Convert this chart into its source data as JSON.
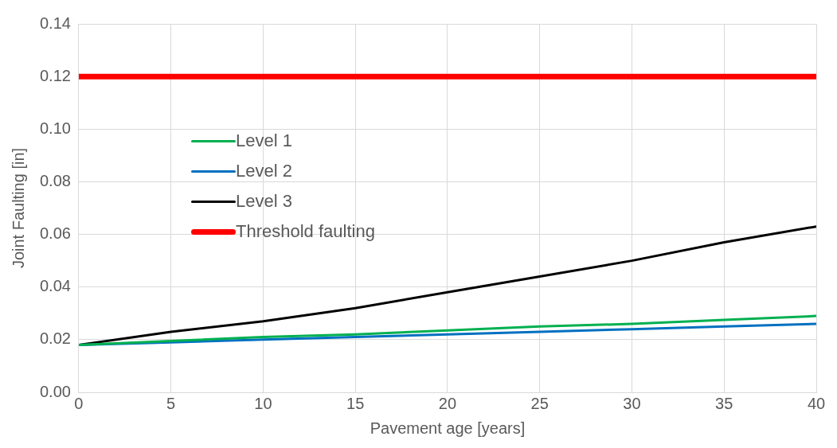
{
  "chart_data": {
    "type": "line",
    "xlabel": "Pavement age [years]",
    "ylabel": "Joint Faulting [in]",
    "x": [
      0,
      5,
      10,
      15,
      20,
      25,
      30,
      35,
      40
    ],
    "series": [
      {
        "name": "Level 1",
        "color": "#00b050",
        "values": [
          0.018,
          0.0195,
          0.021,
          0.022,
          0.0235,
          0.025,
          0.026,
          0.0275,
          0.029
        ]
      },
      {
        "name": "Level 2",
        "color": "#0070c0",
        "values": [
          0.018,
          0.019,
          0.02,
          0.021,
          0.022,
          0.023,
          0.024,
          0.025,
          0.026
        ]
      },
      {
        "name": "Level 3",
        "color": "#000000",
        "values": [
          0.018,
          0.023,
          0.027,
          0.032,
          0.038,
          0.044,
          0.05,
          0.057,
          0.063
        ]
      },
      {
        "name": "Threshold faulting",
        "color": "#ff0000",
        "x": [
          0,
          40
        ],
        "values": [
          0.12,
          0.12
        ]
      }
    ],
    "xlim": [
      0,
      40
    ],
    "xticks": [
      0,
      5,
      10,
      15,
      20,
      25,
      30,
      35,
      40
    ],
    "ylim": [
      0,
      0.14
    ],
    "yticks": [
      {
        "value": 0,
        "label": "0.00"
      },
      {
        "value": 0.02,
        "label": "0.02"
      },
      {
        "value": 0.04,
        "label": "0.04"
      },
      {
        "value": 0.06,
        "label": "0.06"
      },
      {
        "value": 0.08,
        "label": "0.08"
      },
      {
        "value": 0.1,
        "label": "0.10"
      },
      {
        "value": 0.12,
        "label": "0.12"
      },
      {
        "value": 0.14,
        "label": "0.14"
      }
    ],
    "grid": true,
    "legend": "left",
    "marker": "none",
    "line_style": "solid"
  }
}
